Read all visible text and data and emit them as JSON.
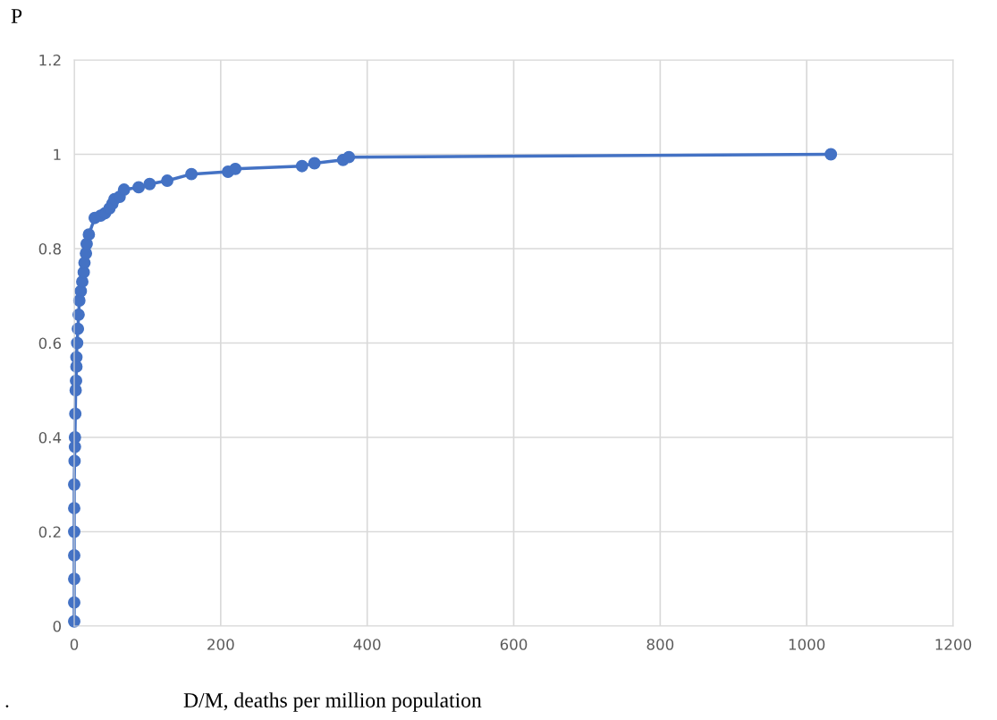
{
  "chart_data": {
    "type": "line",
    "ylabel": "P",
    "xlabel": "D/M, deaths per million population",
    "annotations": [
      "."
    ],
    "x": [
      0,
      0,
      0,
      0,
      0,
      0,
      0,
      0.5,
      1,
      1,
      1.5,
      2,
      2.5,
      3,
      3,
      4,
      5,
      6,
      7,
      9,
      11,
      13,
      14,
      16,
      17,
      20,
      28,
      36,
      42,
      48,
      52,
      55,
      62,
      68,
      88,
      103,
      127,
      160,
      210,
      220,
      311,
      328,
      367,
      375,
      1033
    ],
    "series": [
      {
        "color": "#4472c4",
        "values": [
          0.01,
          0.05,
          0.1,
          0.15,
          0.2,
          0.25,
          0.3,
          0.35,
          0.38,
          0.4,
          0.45,
          0.5,
          0.52,
          0.55,
          0.57,
          0.6,
          0.63,
          0.66,
          0.69,
          0.71,
          0.73,
          0.75,
          0.77,
          0.79,
          0.81,
          0.83,
          0.865,
          0.87,
          0.875,
          0.885,
          0.895,
          0.905,
          0.91,
          0.925,
          0.93,
          0.937,
          0.944,
          0.958,
          0.963,
          0.969,
          0.975,
          0.981,
          0.988,
          0.994,
          1.0
        ]
      }
    ],
    "xlim": [
      0,
      1200
    ],
    "xticks": [
      0,
      200,
      400,
      600,
      800,
      1000,
      1200
    ],
    "ylim": [
      0,
      1.2
    ],
    "yticks": [
      {
        "value": 0,
        "label": "0"
      },
      {
        "value": 0.2,
        "label": "0.2"
      },
      {
        "value": 0.4,
        "label": "0.4"
      },
      {
        "value": 0.6,
        "label": "0.6"
      },
      {
        "value": 0.8,
        "label": "0.8"
      },
      {
        "value": 1,
        "label": "1"
      },
      {
        "value": 1.2,
        "label": "1.2"
      }
    ],
    "grid": true,
    "marker": "circle",
    "line_style": "solid",
    "legend": false
  }
}
